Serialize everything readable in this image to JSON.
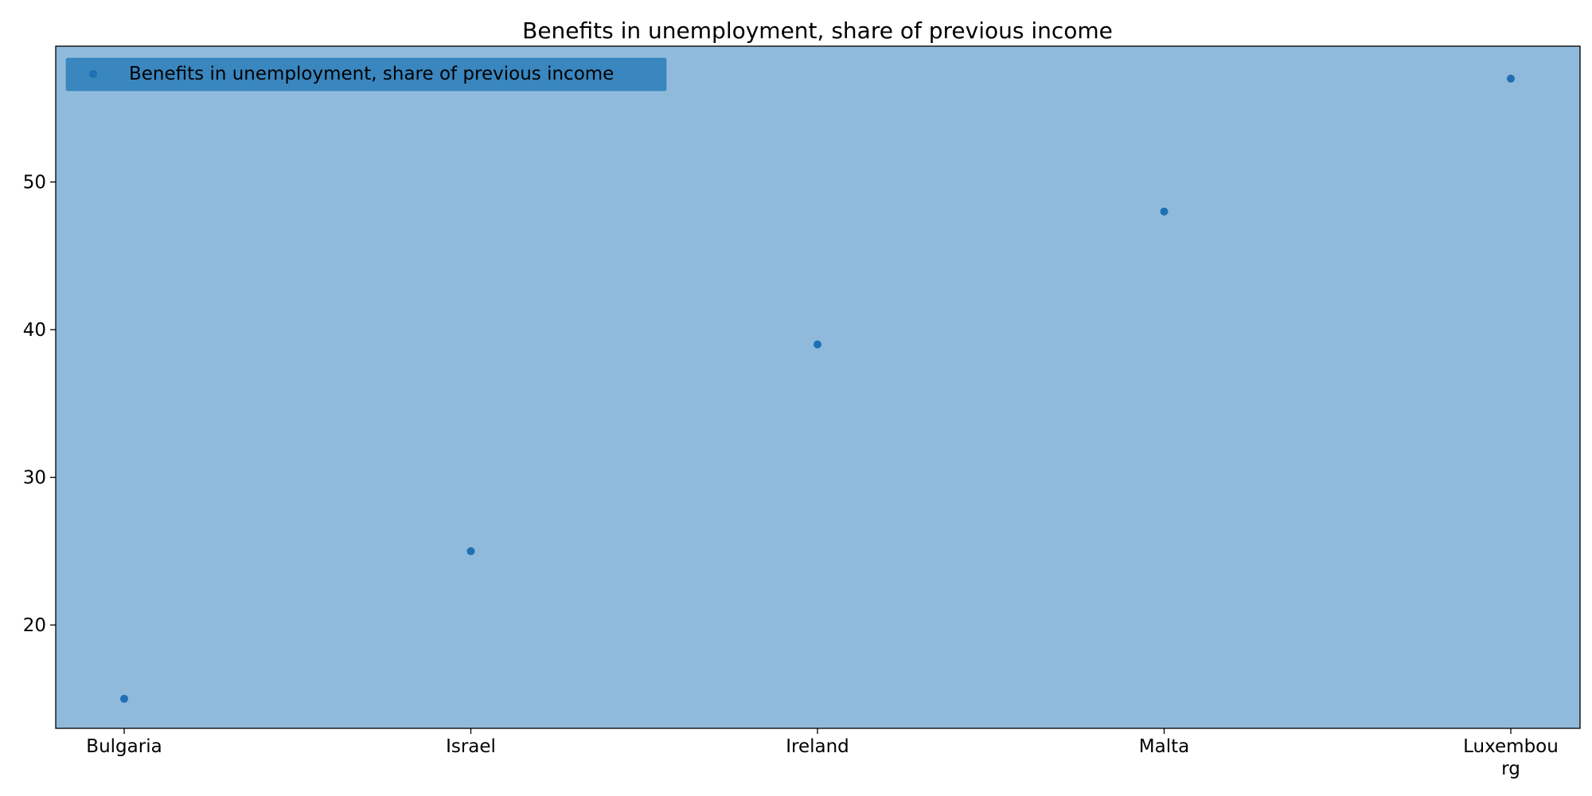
{
  "chart_data": {
    "type": "scatter",
    "title": "Benefits in unemployment, share of previous income",
    "xlabel": "",
    "ylabel": "",
    "categories": [
      "Bulgaria",
      "Israel",
      "Ireland",
      "Malta",
      "Luxembourg"
    ],
    "category_tick_labels": [
      [
        "Bulgaria"
      ],
      [
        "Israel"
      ],
      [
        "Ireland"
      ],
      [
        "Malta"
      ],
      [
        "Luxembou",
        "rg"
      ]
    ],
    "series": [
      {
        "name": "Benefits in unemployment, share of previous income",
        "values": [
          15,
          25,
          39,
          48,
          57
        ]
      }
    ],
    "ylim": [
      13,
      59.2
    ],
    "yticks": [
      20,
      30,
      40,
      50
    ],
    "grid": false,
    "legend": "top-left",
    "colors": {
      "plot_background": "#8fbadb",
      "marker": "#1f6fb4",
      "legend_background": "#3a86bf",
      "legend_border": "#9cc2de"
    }
  }
}
